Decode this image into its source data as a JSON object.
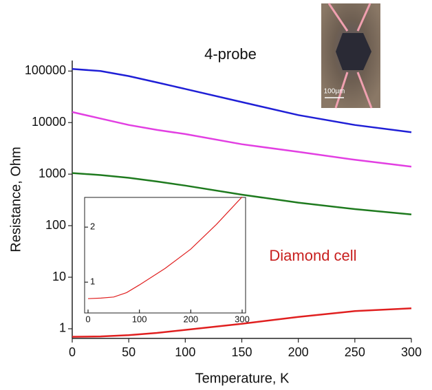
{
  "chart_data": [
    {
      "type": "line",
      "xlabel": "Temperature, K",
      "ylabel": "Resistance, Ohm",
      "annotations": [
        "4-probe",
        "Diamond cell"
      ],
      "photo_scale": "100µm",
      "log_y": true,
      "xlim": [
        0,
        300
      ],
      "ylim": [
        0.65,
        160000
      ],
      "xticks": [
        0,
        50,
        100,
        150,
        200,
        250,
        300
      ],
      "yticks": [
        1,
        10,
        100,
        1000,
        10000,
        100000
      ],
      "x": [
        0,
        25,
        50,
        75,
        100,
        150,
        200,
        250,
        300
      ],
      "series": [
        {
          "color": "#1f1fd6",
          "values": [
            110000,
            100000,
            80000,
            60000,
            45000,
            25000,
            14000,
            9000,
            6500
          ]
        },
        {
          "color": "#e23fe2",
          "values": [
            16000,
            12000,
            9000,
            7200,
            6000,
            3800,
            2700,
            1900,
            1400
          ]
        },
        {
          "color": "#1e7a1e",
          "values": [
            1050,
            960,
            850,
            720,
            600,
            400,
            280,
            210,
            165
          ]
        },
        {
          "color": "#e01f1f",
          "values": [
            0.7,
            0.71,
            0.75,
            0.83,
            0.95,
            1.25,
            1.7,
            2.2,
            2.5
          ]
        }
      ]
    },
    {
      "type": "line",
      "log_y": false,
      "xlim": [
        0,
        300
      ],
      "ylim": [
        0.44,
        2.54
      ],
      "xticks": [
        0,
        100,
        200,
        300
      ],
      "yticks": [
        1,
        2
      ],
      "x": [
        0,
        25,
        50,
        75,
        100,
        150,
        200,
        250,
        300
      ],
      "series": [
        {
          "color": "#e01f1f",
          "values": [
            0.7,
            0.71,
            0.73,
            0.81,
            0.95,
            1.25,
            1.6,
            2.05,
            2.55
          ]
        }
      ]
    }
  ]
}
